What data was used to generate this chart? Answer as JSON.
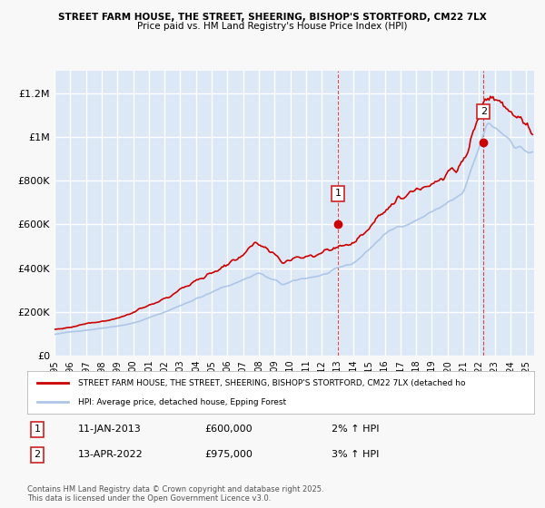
{
  "title_line1": "STREET FARM HOUSE, THE STREET, SHEERING, BISHOP'S STORTFORD, CM22 7LX",
  "title_line2": "Price paid vs. HM Land Registry's House Price Index (HPI)",
  "ylabel": "",
  "ylim": [
    0,
    1300000
  ],
  "yticks": [
    0,
    200000,
    400000,
    600000,
    800000,
    1000000,
    1200000
  ],
  "ytick_labels": [
    "£0",
    "£200K",
    "£400K",
    "£600K",
    "£800K",
    "£1M",
    "£1.2M"
  ],
  "xlim_start": 1995.0,
  "xlim_end": 2025.5,
  "hpi_color": "#aec6e8",
  "price_color": "#cc0000",
  "annotation1_date": 2013.03,
  "annotation1_value": 600000,
  "annotation1_label": "1",
  "annotation2_date": 2022.28,
  "annotation2_value": 975000,
  "annotation2_label": "2",
  "legend_line1": "STREET FARM HOUSE, THE STREET, SHEERING, BISHOP'S STORTFORD, CM22 7LX (detached ho",
  "legend_line2": "HPI: Average price, detached house, Epping Forest",
  "table_entries": [
    {
      "num": "1",
      "date": "11-JAN-2013",
      "price": "£600,000",
      "hpi": "2% ↑ HPI"
    },
    {
      "num": "2",
      "date": "13-APR-2022",
      "price": "£975,000",
      "hpi": "3% ↑ HPI"
    }
  ],
  "footer": "Contains HM Land Registry data © Crown copyright and database right 2025.\nThis data is licensed under the Open Government Licence v3.0.",
  "bg_color": "#f0f4fa",
  "plot_bg_color": "#dce8f5",
  "grid_color": "#ffffff",
  "vline1_x": 2013.03,
  "vline2_x": 2022.28
}
